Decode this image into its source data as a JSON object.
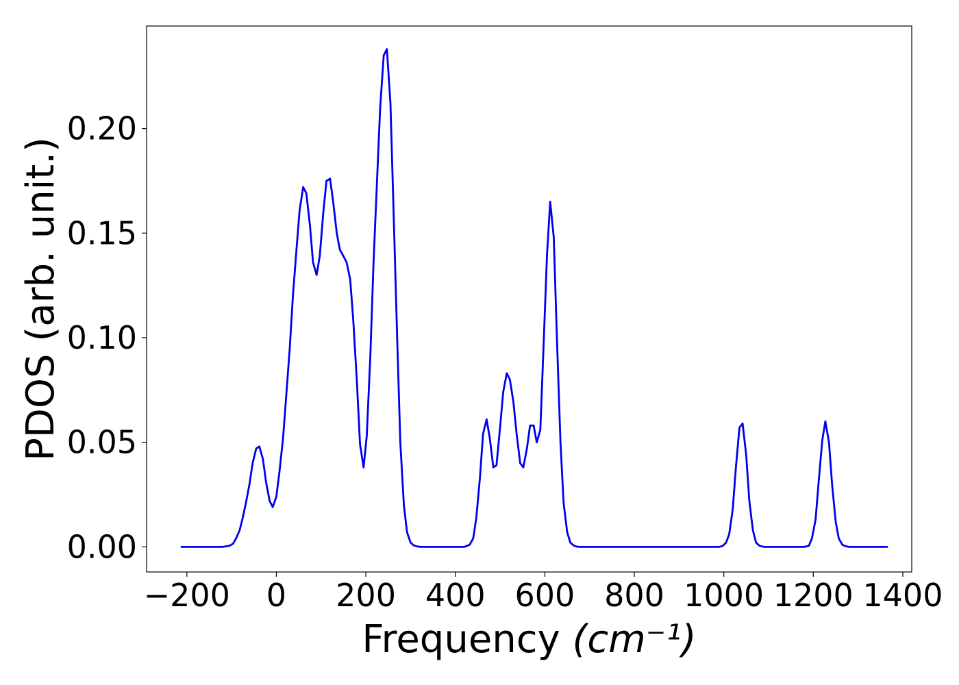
{
  "chart_data": {
    "type": "line",
    "xlabel": "Frequency",
    "xlabel_unit": "(cm⁻¹)",
    "ylabel": "PDOS (arb. unit.)",
    "xlim": [
      -290,
      1420
    ],
    "ylim": [
      -0.012,
      0.249
    ],
    "xticks": [
      -200,
      0,
      200,
      400,
      600,
      800,
      1000,
      1200,
      1400
    ],
    "xtick_labels": [
      "−200",
      "0",
      "200",
      "400",
      "600",
      "800",
      "1000",
      "1200",
      "1400"
    ],
    "yticks": [
      0.0,
      0.05,
      0.1,
      0.15,
      0.2
    ],
    "ytick_labels": [
      "0.00",
      "0.05",
      "0.10",
      "0.15",
      "0.20"
    ],
    "grid": false,
    "line_color": "#0000ee",
    "series": [
      {
        "x": [
          -212,
          -120,
          -105,
          -97,
          -90,
          -82,
          -75,
          -68,
          -60,
          -53,
          -45,
          -38,
          -30,
          -23,
          -15,
          -8,
          0,
          7,
          15,
          22,
          30,
          37,
          45,
          52,
          60,
          67,
          75,
          82,
          90,
          97,
          105,
          112,
          120,
          127,
          135,
          142,
          150,
          157,
          165,
          172,
          180,
          187,
          195,
          202,
          210,
          217,
          225,
          232,
          240,
          247,
          255,
          262,
          270,
          277,
          285,
          292,
          300,
          307,
          315,
          322,
          330,
          337,
          345,
          360,
          420,
          432,
          440,
          447,
          455,
          462,
          470,
          477,
          485,
          492,
          500,
          507,
          515,
          522,
          530,
          537,
          545,
          552,
          560,
          567,
          575,
          582,
          590,
          597,
          605,
          612,
          620,
          627,
          635,
          642,
          650,
          657,
          665,
          672,
          680,
          690,
          990,
          998,
          1005,
          1012,
          1020,
          1027,
          1035,
          1042,
          1050,
          1057,
          1065,
          1072,
          1080,
          1090,
          1180,
          1190,
          1197,
          1205,
          1212,
          1220,
          1227,
          1235,
          1242,
          1250,
          1257,
          1265,
          1272,
          1280,
          1365
        ],
        "y": [
          0.0,
          0.0,
          0.0005,
          0.0015,
          0.004,
          0.008,
          0.014,
          0.021,
          0.03,
          0.04,
          0.047,
          0.048,
          0.042,
          0.031,
          0.022,
          0.019,
          0.024,
          0.036,
          0.052,
          0.072,
          0.095,
          0.12,
          0.142,
          0.161,
          0.172,
          0.169,
          0.154,
          0.136,
          0.13,
          0.139,
          0.16,
          0.175,
          0.176,
          0.165,
          0.15,
          0.142,
          0.139,
          0.136,
          0.128,
          0.108,
          0.079,
          0.049,
          0.038,
          0.053,
          0.091,
          0.135,
          0.175,
          0.21,
          0.235,
          0.238,
          0.212,
          0.16,
          0.1,
          0.05,
          0.02,
          0.007,
          0.002,
          0.0007,
          0.0002,
          0.0,
          0.0,
          0.0,
          0.0,
          0.0,
          0.0,
          0.001,
          0.004,
          0.014,
          0.033,
          0.054,
          0.061,
          0.052,
          0.038,
          0.039,
          0.057,
          0.074,
          0.083,
          0.08,
          0.069,
          0.054,
          0.04,
          0.038,
          0.047,
          0.058,
          0.058,
          0.05,
          0.056,
          0.095,
          0.14,
          0.165,
          0.148,
          0.1,
          0.05,
          0.021,
          0.007,
          0.002,
          0.0006,
          0.0001,
          0.0,
          0.0,
          0.0,
          0.0005,
          0.002,
          0.006,
          0.018,
          0.038,
          0.057,
          0.059,
          0.044,
          0.022,
          0.008,
          0.002,
          0.0005,
          0.0,
          0.0,
          0.0005,
          0.004,
          0.013,
          0.031,
          0.051,
          0.06,
          0.05,
          0.03,
          0.012,
          0.004,
          0.001,
          0.0003,
          0.0,
          0.0
        ]
      }
    ]
  }
}
